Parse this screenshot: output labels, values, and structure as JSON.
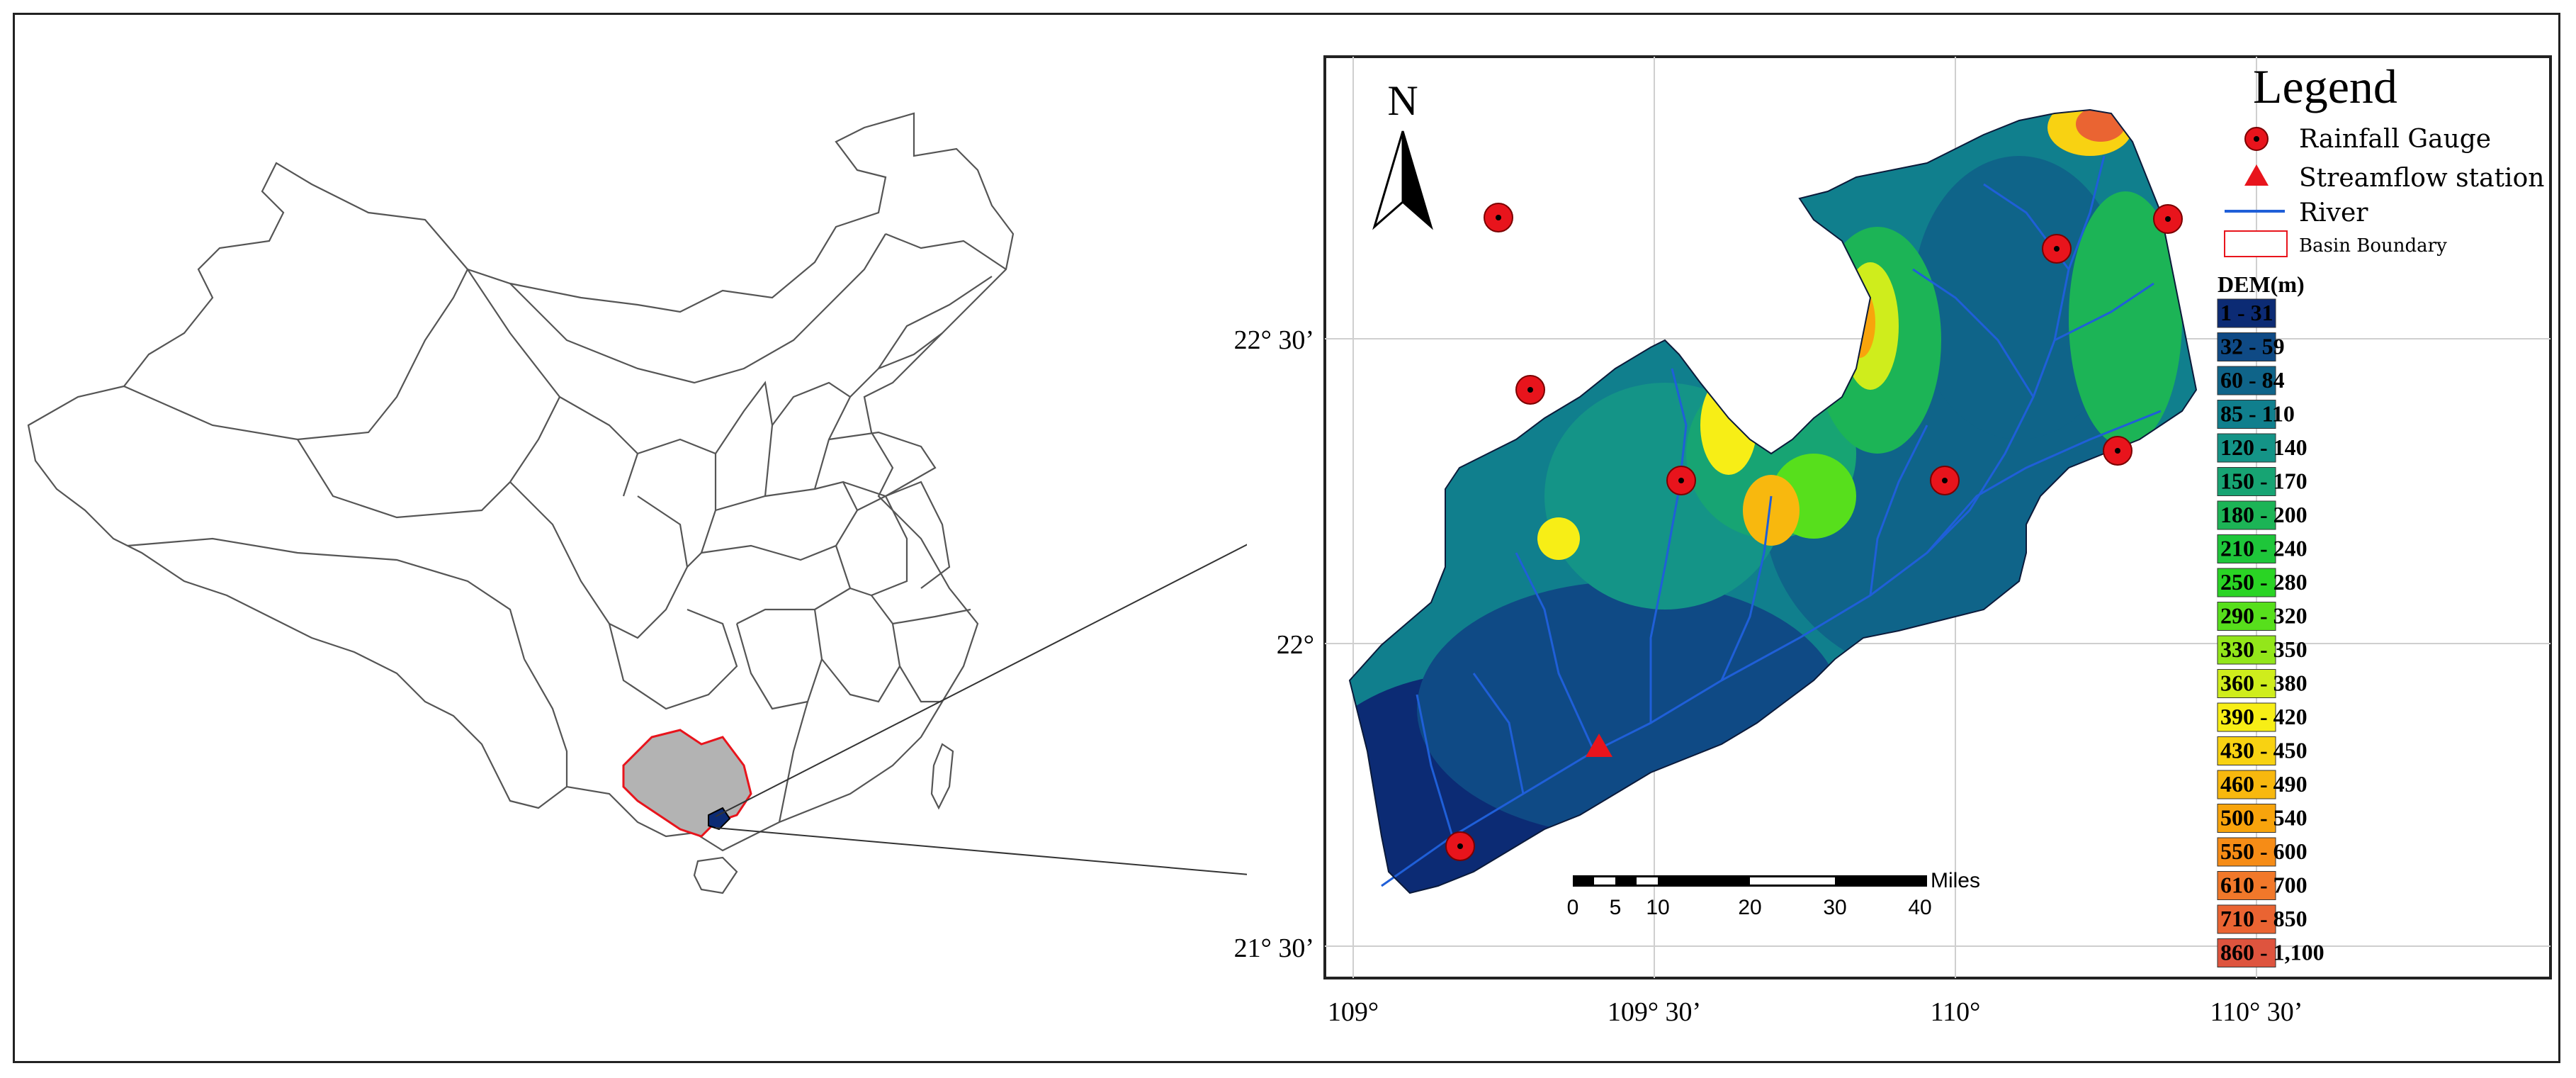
{
  "map": {
    "north_label": "N",
    "legend": {
      "title": "Legend",
      "rainfall_gauge": "Rainfall Gauge",
      "streamflow_station": "Streamflow station",
      "river": "River",
      "basin_boundary": "Basin Boundary",
      "dem_title": "DEM(m)"
    },
    "dem_classes": [
      {
        "label": "1 - 31",
        "color": "#0c2b74"
      },
      {
        "label": "32 - 59",
        "color": "#0f4a85"
      },
      {
        "label": "60 - 84",
        "color": "#0f6489"
      },
      {
        "label": "85 - 110",
        "color": "#107f8d"
      },
      {
        "label": "120 - 140",
        "color": "#149487"
      },
      {
        "label": "150 - 170",
        "color": "#17a473"
      },
      {
        "label": "180 - 200",
        "color": "#1cb456"
      },
      {
        "label": "210 - 240",
        "color": "#1ec63a"
      },
      {
        "label": "250 - 280",
        "color": "#2ad424"
      },
      {
        "label": "290 - 320",
        "color": "#57df1c"
      },
      {
        "label": "330 - 350",
        "color": "#93e61a"
      },
      {
        "label": "360 - 380",
        "color": "#cfed1c"
      },
      {
        "label": "390 - 420",
        "color": "#f7ee16"
      },
      {
        "label": "430 - 450",
        "color": "#f8d212"
      },
      {
        "label": "460 - 490",
        "color": "#f8b80e"
      },
      {
        "label": "500 - 540",
        "color": "#f8a40c"
      },
      {
        "label": "550 - 600",
        "color": "#f68c16"
      },
      {
        "label": "610 - 700",
        "color": "#f1782a"
      },
      {
        "label": "710 - 850",
        "color": "#ea6432"
      },
      {
        "label": "860 - 1,100",
        "color": "#de543e"
      }
    ],
    "lat_labels": [
      "22° 30’",
      "22°",
      "21° 30’"
    ],
    "lon_labels": [
      "109°",
      "109° 30’",
      "110°",
      "110° 30’"
    ],
    "scale": {
      "unit": "Miles",
      "ticks": [
        "0",
        "5",
        "10",
        "20",
        "30",
        "40"
      ]
    },
    "colors": {
      "gauge": "#e8141c",
      "streamflow": "#e8141c",
      "river": "#1f5fd8",
      "basin_boundary": "#e8141c",
      "province_fill": "#b3b3b3"
    }
  }
}
